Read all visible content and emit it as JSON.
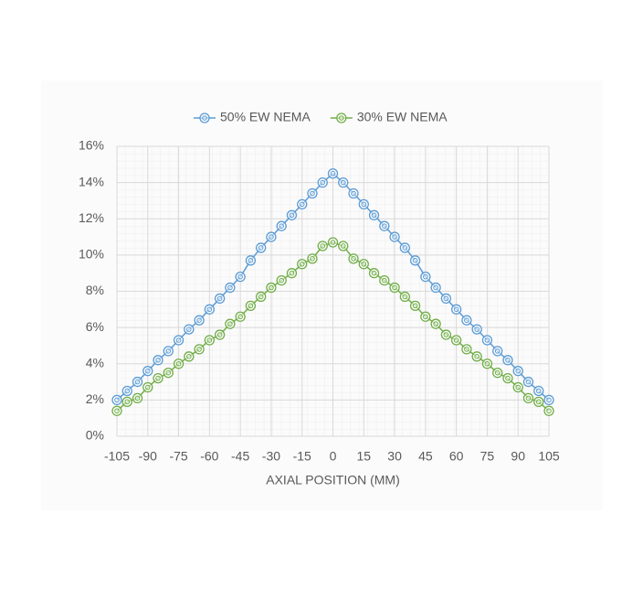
{
  "chart_data": {
    "type": "line",
    "x_label": "AXIAL POSITION (MM)",
    "x": [
      -105,
      -100,
      -95,
      -90,
      -85,
      -80,
      -75,
      -70,
      -65,
      -60,
      -55,
      -50,
      -45,
      -40,
      -35,
      -30,
      -25,
      -20,
      -15,
      -10,
      -5,
      0,
      5,
      10,
      15,
      20,
      25,
      30,
      35,
      40,
      45,
      50,
      55,
      60,
      65,
      70,
      75,
      80,
      85,
      90,
      95,
      100,
      105
    ],
    "series": [
      {
        "name": "50% EW NEMA",
        "color": "#5b9bd5",
        "values": [
          2.0,
          2.5,
          3.0,
          3.6,
          4.2,
          4.7,
          5.3,
          5.9,
          6.4,
          7.0,
          7.6,
          8.2,
          8.8,
          9.7,
          10.4,
          11.0,
          11.6,
          12.2,
          12.8,
          13.4,
          14.0,
          14.5,
          14.0,
          13.4,
          12.8,
          12.2,
          11.6,
          11.0,
          10.4,
          9.7,
          8.8,
          8.2,
          7.6,
          7.0,
          6.4,
          5.9,
          5.3,
          4.7,
          4.2,
          3.6,
          3.0,
          2.5,
          2.0
        ]
      },
      {
        "name": "30% EW NEMA",
        "color": "#70ad47",
        "values": [
          1.4,
          1.9,
          2.1,
          2.7,
          3.2,
          3.5,
          4.0,
          4.4,
          4.8,
          5.3,
          5.6,
          6.2,
          6.6,
          7.2,
          7.7,
          8.2,
          8.6,
          9.0,
          9.5,
          9.8,
          10.5,
          10.7,
          10.5,
          9.8,
          9.5,
          9.0,
          8.6,
          8.2,
          7.7,
          7.2,
          6.6,
          6.2,
          5.6,
          5.3,
          4.8,
          4.4,
          4.0,
          3.5,
          3.2,
          2.7,
          2.1,
          1.9,
          1.4
        ]
      }
    ],
    "xlim": [
      -105,
      105
    ],
    "xticks": [
      -105,
      -90,
      -75,
      -60,
      -45,
      -30,
      -15,
      0,
      15,
      30,
      45,
      60,
      75,
      90,
      105
    ],
    "ylim": [
      0,
      16
    ],
    "yticks": [
      {
        "value": 0,
        "label": "0%"
      },
      {
        "value": 2,
        "label": "2%"
      },
      {
        "value": 4,
        "label": "4%"
      },
      {
        "value": 6,
        "label": "6%"
      },
      {
        "value": 8,
        "label": "8%"
      },
      {
        "value": 10,
        "label": "10%"
      },
      {
        "value": 12,
        "label": "12%"
      },
      {
        "value": 14,
        "label": "14%"
      },
      {
        "value": 16,
        "label": "16%"
      }
    ],
    "grid": true,
    "legend": "top"
  }
}
